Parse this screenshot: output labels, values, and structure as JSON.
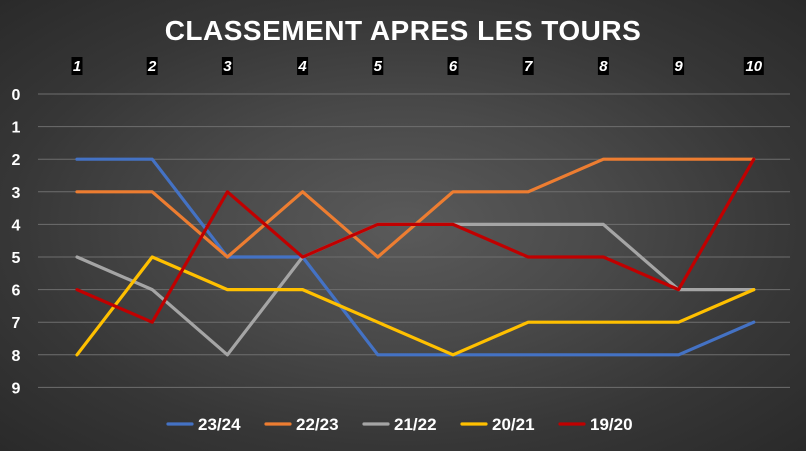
{
  "chart_data": {
    "type": "line",
    "title": "CLASSEMENT APRES LES TOURS",
    "xlabel": "",
    "ylabel": "",
    "x": [
      "1",
      "2",
      "3",
      "4",
      "5",
      "6",
      "7",
      "8",
      "9",
      "10"
    ],
    "y_ticks": [
      "0",
      "1",
      "2",
      "3",
      "4",
      "5",
      "6",
      "7",
      "8",
      "9"
    ],
    "ylim": [
      0,
      9
    ],
    "y_inverted": true,
    "x_axis_position": "top",
    "grid": true,
    "legend_position": "bottom",
    "series": [
      {
        "name": "23/24",
        "color": "#4472C4",
        "values": [
          2,
          2,
          5,
          5,
          8,
          8,
          8,
          8,
          8,
          7
        ]
      },
      {
        "name": "22/23",
        "color": "#ED7D31",
        "values": [
          3,
          3,
          5,
          3,
          5,
          3,
          3,
          2,
          2,
          2
        ]
      },
      {
        "name": "21/22",
        "color": "#A5A5A5",
        "values": [
          5,
          6,
          8,
          5,
          4,
          4,
          4,
          4,
          6,
          6
        ]
      },
      {
        "name": "20/21",
        "color": "#FFC000",
        "values": [
          8,
          5,
          6,
          6,
          7,
          8,
          7,
          7,
          7,
          6
        ]
      },
      {
        "name": "19/20",
        "color": "#C00000",
        "values": [
          6,
          7,
          3,
          5,
          4,
          4,
          5,
          5,
          6,
          2
        ]
      }
    ]
  }
}
